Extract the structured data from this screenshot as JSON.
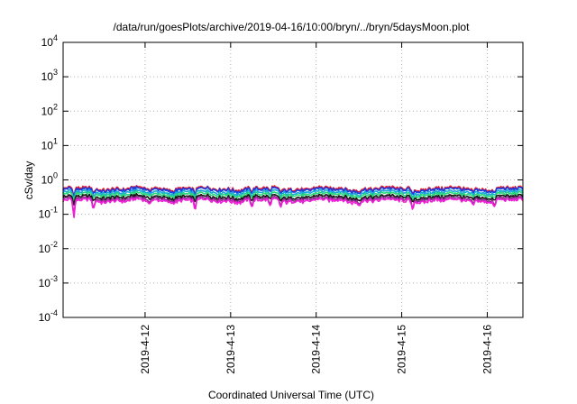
{
  "chart_data": {
    "type": "line",
    "title": "/data/run/goesPlots/archive/2019-04-16/10:00/bryn/../bryn/5daysMoon.plot",
    "xlabel": "Coordinated Universal Time (UTC)",
    "ylabel": "cSv/day",
    "yscale": "log",
    "ylim": [
      0.0001,
      10000
    ],
    "xlim": [
      "2019-04-11T01:00",
      "2019-04-16T10:00"
    ],
    "grid": true,
    "y_ticks": [
      {
        "base": "10",
        "exp": "-4",
        "value": 0.0001
      },
      {
        "base": "10",
        "exp": "-3",
        "value": 0.001
      },
      {
        "base": "10",
        "exp": "-2",
        "value": 0.01
      },
      {
        "base": "10",
        "exp": "-1",
        "value": 0.1
      },
      {
        "base": "10",
        "exp": "0",
        "value": 1
      },
      {
        "base": "10",
        "exp": "1",
        "value": 10
      },
      {
        "base": "10",
        "exp": "2",
        "value": 100
      },
      {
        "base": "10",
        "exp": "3",
        "value": 1000
      },
      {
        "base": "10",
        "exp": "4",
        "value": 10000
      }
    ],
    "x_ticks": [
      {
        "label": "2019-4-12",
        "value": "2019-04-12T00:00"
      },
      {
        "label": "2019-4-13",
        "value": "2019-04-13T00:00"
      },
      {
        "label": "2019-4-14",
        "value": "2019-04-14T00:00"
      },
      {
        "label": "2019-4-15",
        "value": "2019-04-15T00:00"
      },
      {
        "label": "2019-4-16",
        "value": "2019-04-16T00:00"
      }
    ],
    "series": [
      {
        "color": "#e8182c",
        "base": 0.56
      },
      {
        "color": "#1a3ae0",
        "base": 0.52
      },
      {
        "color": "#18a8d8",
        "base": 0.44
      },
      {
        "color": "#28d878",
        "base": 0.38
      },
      {
        "color": "#111111",
        "base": 0.32
      },
      {
        "color": "#8a2a8a",
        "base": 0.28
      },
      {
        "color": "#f020d8",
        "base": 0.25
      }
    ],
    "dips": [
      {
        "t": "2019-04-11T04:00",
        "factor": 0.25
      },
      {
        "t": "2019-04-11T09:30",
        "factor": 0.45
      },
      {
        "t": "2019-04-12T01:00",
        "factor": 0.75
      },
      {
        "t": "2019-04-12T14:00",
        "factor": 0.5
      },
      {
        "t": "2019-04-13T06:00",
        "factor": 0.55
      },
      {
        "t": "2019-04-13T11:00",
        "factor": 0.6
      },
      {
        "t": "2019-04-13T14:00",
        "factor": 0.65
      },
      {
        "t": "2019-04-14T12:00",
        "factor": 0.75
      },
      {
        "t": "2019-04-15T03:00",
        "factor": 0.5
      },
      {
        "t": "2019-04-15T20:00",
        "factor": 0.7
      },
      {
        "t": "2019-04-16T02:00",
        "factor": 0.6
      }
    ]
  }
}
